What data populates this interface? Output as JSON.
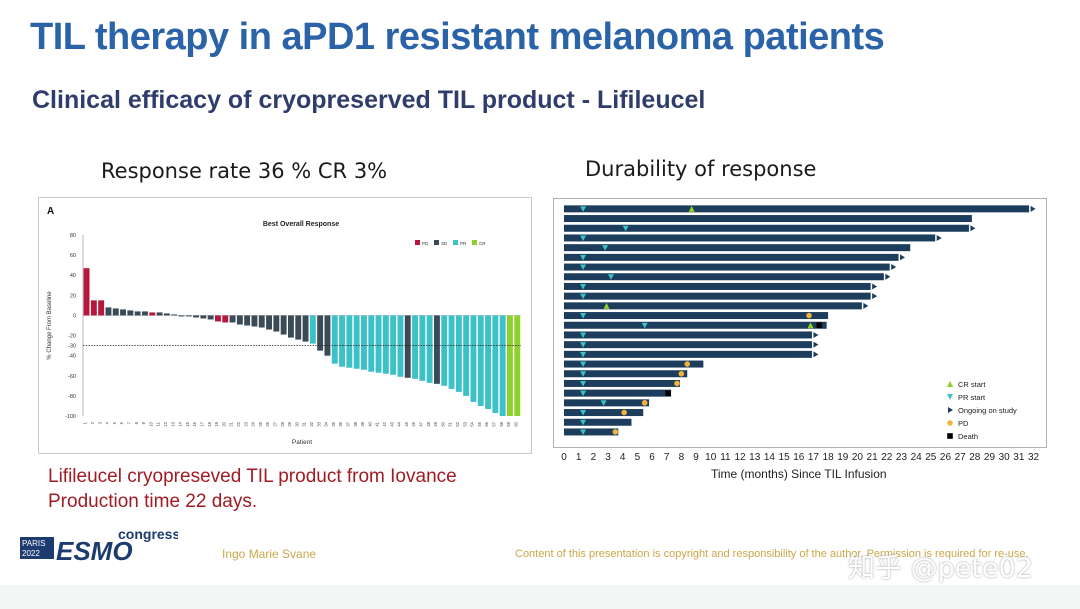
{
  "slide": {
    "title": "TIL therapy in aPD1 resistant melanoma patients",
    "subtitle": "Clinical efficacy of cryopreserved TIL product - Lifileucel",
    "left_heading": "Response rate 36 % CR 3%",
    "right_heading": "Durability of response",
    "note_line1": "Lifileucel cryopreseved TIL product from Iovance",
    "note_line2": "Production time 22 days.",
    "presenter": "Ingo Marie Svane",
    "copyright": "Content of this presentation is copyright and responsibility of the author. Permission is required for re-use.",
    "watermark": "知乎 @pete02",
    "logo": {
      "city": "PARIS",
      "year": "2022",
      "brand": "ESMO",
      "word": "congress"
    }
  },
  "colors": {
    "title": "#2b63a8",
    "PD": "#b5173d",
    "SD": "#3a4a56",
    "PR": "#3cc1c9",
    "CR": "#8fd12a",
    "swimmer": "#1d3d5c",
    "note": "#a01c24"
  },
  "chart_data": [
    {
      "type": "bar",
      "panel_label": "A",
      "title": "Best Overall Response",
      "xlabel": "Patient",
      "ylabel": "% Change From Baseline",
      "ylim": [
        -100,
        80
      ],
      "yticks": [
        80,
        60,
        40,
        20,
        0,
        -20,
        -30,
        -40,
        -60,
        -80,
        -100
      ],
      "reference_line": -30,
      "legend": [
        "PD",
        "SD",
        "PR",
        "CR"
      ],
      "legend_position": "top-right",
      "values": [
        47,
        15,
        15,
        8,
        7,
        6,
        5,
        4,
        4,
        3,
        3,
        2,
        1,
        0,
        -1,
        -2,
        -3,
        -4,
        -6,
        -7,
        -7,
        -9,
        -10,
        -11,
        -12,
        -14,
        -16,
        -19,
        -22,
        -24,
        -26,
        -28,
        -35,
        -40,
        -48,
        -51,
        -52,
        -53,
        -54,
        -56,
        -57,
        -58,
        -59,
        -61,
        -62,
        -63,
        -65,
        -67,
        -68,
        -70,
        -73,
        -76,
        -80,
        -86,
        -90,
        -93,
        -97,
        -100,
        -100,
        -100
      ],
      "responses": [
        "PD",
        "PD",
        "PD",
        "SD",
        "SD",
        "SD",
        "SD",
        "SD",
        "SD",
        "PD",
        "SD",
        "SD",
        "SD",
        "SD",
        "SD",
        "SD",
        "SD",
        "SD",
        "PD",
        "PD",
        "SD",
        "SD",
        "SD",
        "SD",
        "SD",
        "SD",
        "SD",
        "SD",
        "SD",
        "SD",
        "SD",
        "PR",
        "SD",
        "SD",
        "PR",
        "PR",
        "PR",
        "PR",
        "PR",
        "PR",
        "PR",
        "PR",
        "PR",
        "PR",
        "SD",
        "PR",
        "PR",
        "PR",
        "SD",
        "PR",
        "PR",
        "PR",
        "PR",
        "PR",
        "PR",
        "PR",
        "PR",
        "PR",
        "CR",
        "CR"
      ],
      "patient_ids": [
        "1",
        "2",
        "3",
        "4",
        "5",
        "6",
        "7",
        "8",
        "9",
        "10",
        "11",
        "12",
        "13",
        "14",
        "15",
        "16",
        "17",
        "18",
        "19",
        "20",
        "21",
        "22",
        "23",
        "24",
        "25",
        "26",
        "27",
        "28",
        "29",
        "30",
        "31",
        "32",
        "33",
        "34",
        "35",
        "36",
        "37",
        "38",
        "39",
        "40",
        "41",
        "42",
        "43",
        "44",
        "45",
        "46",
        "47",
        "48",
        "49",
        "50",
        "51",
        "52",
        "53",
        "54",
        "55",
        "56",
        "57",
        "58",
        "59",
        "60"
      ]
    },
    {
      "type": "bar",
      "orientation": "horizontal-swimmer",
      "title": "",
      "xlabel": "Time (months) Since TIL Infusion",
      "xlim": [
        0,
        32
      ],
      "xticks": [
        "0",
        "1",
        "2",
        "3",
        "4",
        "5",
        "6",
        "7",
        "8",
        "9",
        "10",
        "11",
        "12",
        "13",
        "14",
        "15",
        "16",
        "17",
        "18",
        "19",
        "20",
        "21",
        "22",
        "23",
        "24",
        "25",
        "26",
        "27",
        "28",
        "29",
        "30",
        "31",
        "32"
      ],
      "legend": [
        "CR start",
        "PR start",
        "Ongoing on study",
        "PD",
        "Death"
      ],
      "legend_position": "bottom-right",
      "patients": [
        {
          "end": 31.7,
          "pr": 1.3,
          "cr": 8.7,
          "ongoing": true
        },
        {
          "end": 27.8
        },
        {
          "end": 27.6,
          "pr": 4.2,
          "ongoing": true
        },
        {
          "end": 25.3,
          "pr": 1.3,
          "ongoing": true
        },
        {
          "end": 23.6,
          "pr": 2.8
        },
        {
          "end": 22.8,
          "pr": 1.3,
          "ongoing": true
        },
        {
          "end": 22.2,
          "pr": 1.3,
          "ongoing": true
        },
        {
          "end": 21.8,
          "pr": 3.2,
          "ongoing": true
        },
        {
          "end": 20.9,
          "pr": 1.3,
          "ongoing": true
        },
        {
          "end": 20.9,
          "pr": 1.3,
          "ongoing": true
        },
        {
          "end": 20.3,
          "cr": 2.9,
          "ongoing": true
        },
        {
          "end": 18.0,
          "pr": 1.3,
          "pd": 16.7
        },
        {
          "end": 17.9,
          "pr": 5.5,
          "cr": 16.8,
          "death": 17.4
        },
        {
          "end": 16.9,
          "pr": 1.3,
          "ongoing": true
        },
        {
          "end": 16.9,
          "pr": 1.3,
          "ongoing": true
        },
        {
          "end": 16.9,
          "pr": 1.3,
          "ongoing": true
        },
        {
          "end": 9.5,
          "pr": 1.3,
          "pd": 8.4
        },
        {
          "end": 8.4,
          "pr": 1.3,
          "pd": 8.0
        },
        {
          "end": 7.9,
          "pr": 1.3,
          "pd": 7.7
        },
        {
          "end": 7.3,
          "pr": 1.3,
          "death": 7.1
        },
        {
          "end": 5.8,
          "pr": 2.7,
          "pd": 5.5
        },
        {
          "end": 5.4,
          "pr": 1.3,
          "pd": 4.1
        },
        {
          "end": 4.6,
          "pr": 1.3
        },
        {
          "end": 3.7,
          "pr": 1.3,
          "pd": 3.5
        }
      ]
    }
  ]
}
